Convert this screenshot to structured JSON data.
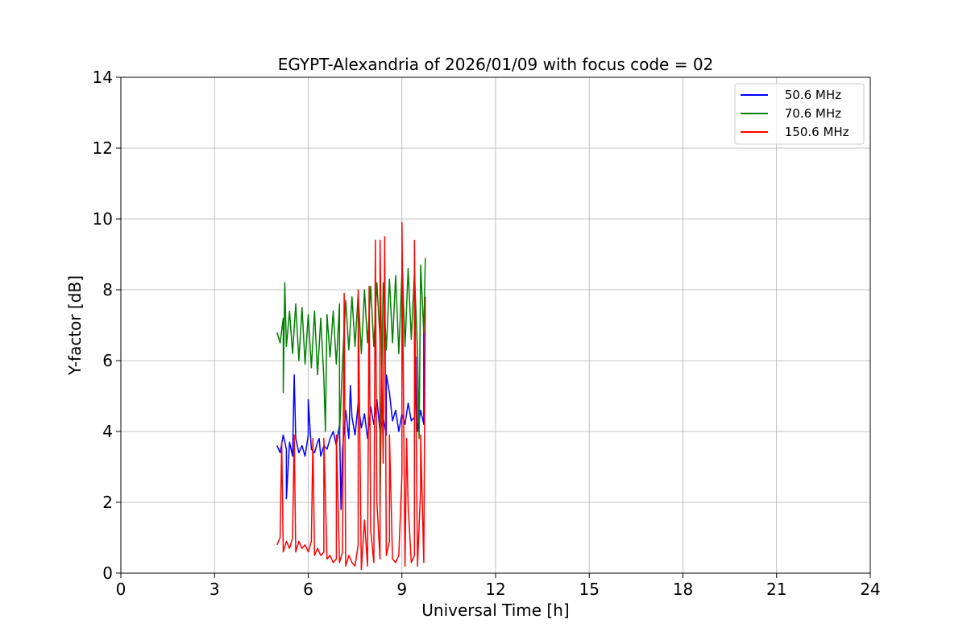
{
  "chart_data": {
    "type": "line",
    "title": "EGYPT-Alexandria of 2026/01/09 with focus code = 02",
    "xlabel": "Universal Time [h]",
    "ylabel": "Y-factor [dB]",
    "xlim": [
      0,
      24
    ],
    "ylim": [
      0,
      14
    ],
    "xticks": [
      0,
      3,
      6,
      9,
      12,
      15,
      18,
      21,
      24
    ],
    "yticks": [
      0,
      2,
      4,
      6,
      8,
      10,
      12,
      14
    ],
    "xtick_labels": [
      "0",
      "3",
      "6",
      "9",
      "12",
      "15",
      "18",
      "21",
      "24"
    ],
    "ytick_labels": [
      "0",
      "2",
      "4",
      "6",
      "8",
      "10",
      "12",
      "14"
    ],
    "grid": true,
    "legend_position": "top-right",
    "series": [
      {
        "name": "50.6 MHz",
        "label": " 50.6 MHz",
        "color": "#0000ff",
        "x": [
          5.0,
          5.1,
          5.2,
          5.3,
          5.4,
          5.5,
          5.6,
          5.7,
          5.8,
          5.9,
          6.0,
          6.1,
          6.2,
          6.3,
          6.4,
          6.5,
          6.6,
          6.7,
          6.8,
          6.9,
          7.0,
          7.1,
          7.2,
          7.3,
          7.4,
          7.5,
          7.6,
          7.7,
          7.8,
          7.9,
          8.0,
          8.1,
          8.2,
          8.3,
          8.4,
          8.5,
          8.6,
          8.7,
          8.8,
          8.9,
          9.0,
          9.1,
          9.2,
          9.3,
          9.4,
          9.5,
          9.6,
          9.7
        ],
        "y": [
          3.6,
          3.4,
          3.9,
          3.5,
          3.7,
          3.3,
          3.8,
          3.4,
          3.6,
          3.3,
          3.9,
          3.5,
          3.4,
          3.7,
          3.3,
          3.6,
          3.5,
          3.8,
          4.0,
          3.6,
          4.2,
          3.5,
          4.6,
          3.8,
          4.4,
          3.9,
          4.8,
          4.1,
          4.5,
          3.8,
          4.7,
          4.2,
          4.9,
          4.0,
          4.4,
          3.9,
          5.1,
          4.3,
          4.6,
          4.0,
          4.5,
          4.2,
          4.8,
          4.3,
          4.4,
          4.0,
          4.6,
          4.2
        ],
        "spikes": [
          [
            5.3,
            2.1
          ],
          [
            5.55,
            5.6
          ],
          [
            6.0,
            4.9
          ],
          [
            6.35,
            3.8
          ],
          [
            7.05,
            1.8
          ],
          [
            7.35,
            5.3
          ],
          [
            8.5,
            5.6
          ],
          [
            9.45,
            6.1
          ],
          [
            9.7,
            6.9
          ]
        ]
      },
      {
        "name": "70.6 MHz",
        "label": " 70.6 MHz",
        "color": "#008000",
        "x": [
          5.0,
          5.1,
          5.2,
          5.3,
          5.4,
          5.5,
          5.6,
          5.7,
          5.8,
          5.9,
          6.0,
          6.1,
          6.2,
          6.3,
          6.4,
          6.5,
          6.6,
          6.7,
          6.8,
          6.9,
          7.0,
          7.1,
          7.2,
          7.3,
          7.4,
          7.5,
          7.6,
          7.7,
          7.8,
          7.9,
          8.0,
          8.1,
          8.2,
          8.3,
          8.4,
          8.5,
          8.6,
          8.7,
          8.8,
          8.9,
          9.0,
          9.1,
          9.2,
          9.3,
          9.4,
          9.5,
          9.6,
          9.7
        ],
        "y": [
          6.8,
          6.5,
          7.2,
          6.4,
          7.4,
          6.2,
          7.6,
          6.0,
          7.5,
          5.9,
          7.3,
          5.8,
          7.4,
          5.6,
          7.2,
          5.5,
          7.3,
          6.1,
          7.4,
          5.9,
          7.6,
          6.0,
          7.7,
          6.3,
          7.8,
          6.4,
          7.9,
          6.2,
          8.0,
          6.5,
          8.1,
          6.4,
          8.2,
          6.6,
          8.2,
          6.3,
          8.3,
          6.5,
          8.4,
          6.2,
          8.5,
          6.4,
          8.6,
          6.6,
          8.5,
          6.3,
          8.7,
          6.8
        ],
        "spikes": [
          [
            5.25,
            8.2
          ],
          [
            5.2,
            5.1
          ],
          [
            6.55,
            4.0
          ],
          [
            7.0,
            3.9
          ],
          [
            8.3,
            1.9
          ],
          [
            9.0,
            8.9
          ],
          [
            9.55,
            3.8
          ],
          [
            9.75,
            8.9
          ]
        ]
      },
      {
        "name": "150.6 MHz",
        "label": " 150.6 MHz",
        "color": "#ff0000",
        "x": [
          5.0,
          5.1,
          5.2,
          5.3,
          5.4,
          5.5,
          5.6,
          5.7,
          5.8,
          5.9,
          6.0,
          6.1,
          6.2,
          6.3,
          6.4,
          6.5,
          6.6,
          6.7,
          6.8,
          6.9,
          7.0,
          7.1,
          7.2,
          7.3,
          7.4,
          7.5,
          7.6,
          7.7,
          7.8,
          7.9,
          8.0,
          8.1,
          8.2,
          8.3,
          8.4,
          8.5,
          8.6,
          8.7,
          8.8,
          8.9,
          9.0,
          9.1,
          9.2,
          9.3,
          9.4,
          9.5,
          9.6,
          9.7
        ],
        "y": [
          0.8,
          1.0,
          0.6,
          0.9,
          0.7,
          1.0,
          0.6,
          0.9,
          0.7,
          0.8,
          0.6,
          0.9,
          0.5,
          0.7,
          0.5,
          0.6,
          0.4,
          0.5,
          0.3,
          0.4,
          0.3,
          0.6,
          0.2,
          0.5,
          0.3,
          0.2,
          0.8,
          0.1,
          1.5,
          0.2,
          1.2,
          0.3,
          2.0,
          0.4,
          3.1,
          0.5,
          0.9,
          0.4,
          0.3,
          0.5,
          2.8,
          0.2,
          1.9,
          0.3,
          0.5,
          0.2,
          2.4,
          0.3
        ],
        "spikes": [
          [
            5.15,
            3.7
          ],
          [
            5.55,
            3.9
          ],
          [
            6.15,
            3.8
          ],
          [
            6.5,
            3.8
          ],
          [
            6.9,
            3.9
          ],
          [
            7.15,
            7.9
          ],
          [
            7.6,
            8.0
          ],
          [
            7.95,
            8.1
          ],
          [
            8.15,
            9.4
          ],
          [
            8.3,
            9.4
          ],
          [
            8.45,
            9.5
          ],
          [
            8.6,
            3.9
          ],
          [
            9.0,
            9.9
          ],
          [
            9.15,
            3.8
          ],
          [
            9.4,
            9.4
          ],
          [
            9.6,
            3.9
          ],
          [
            9.75,
            7.8
          ]
        ]
      }
    ]
  }
}
